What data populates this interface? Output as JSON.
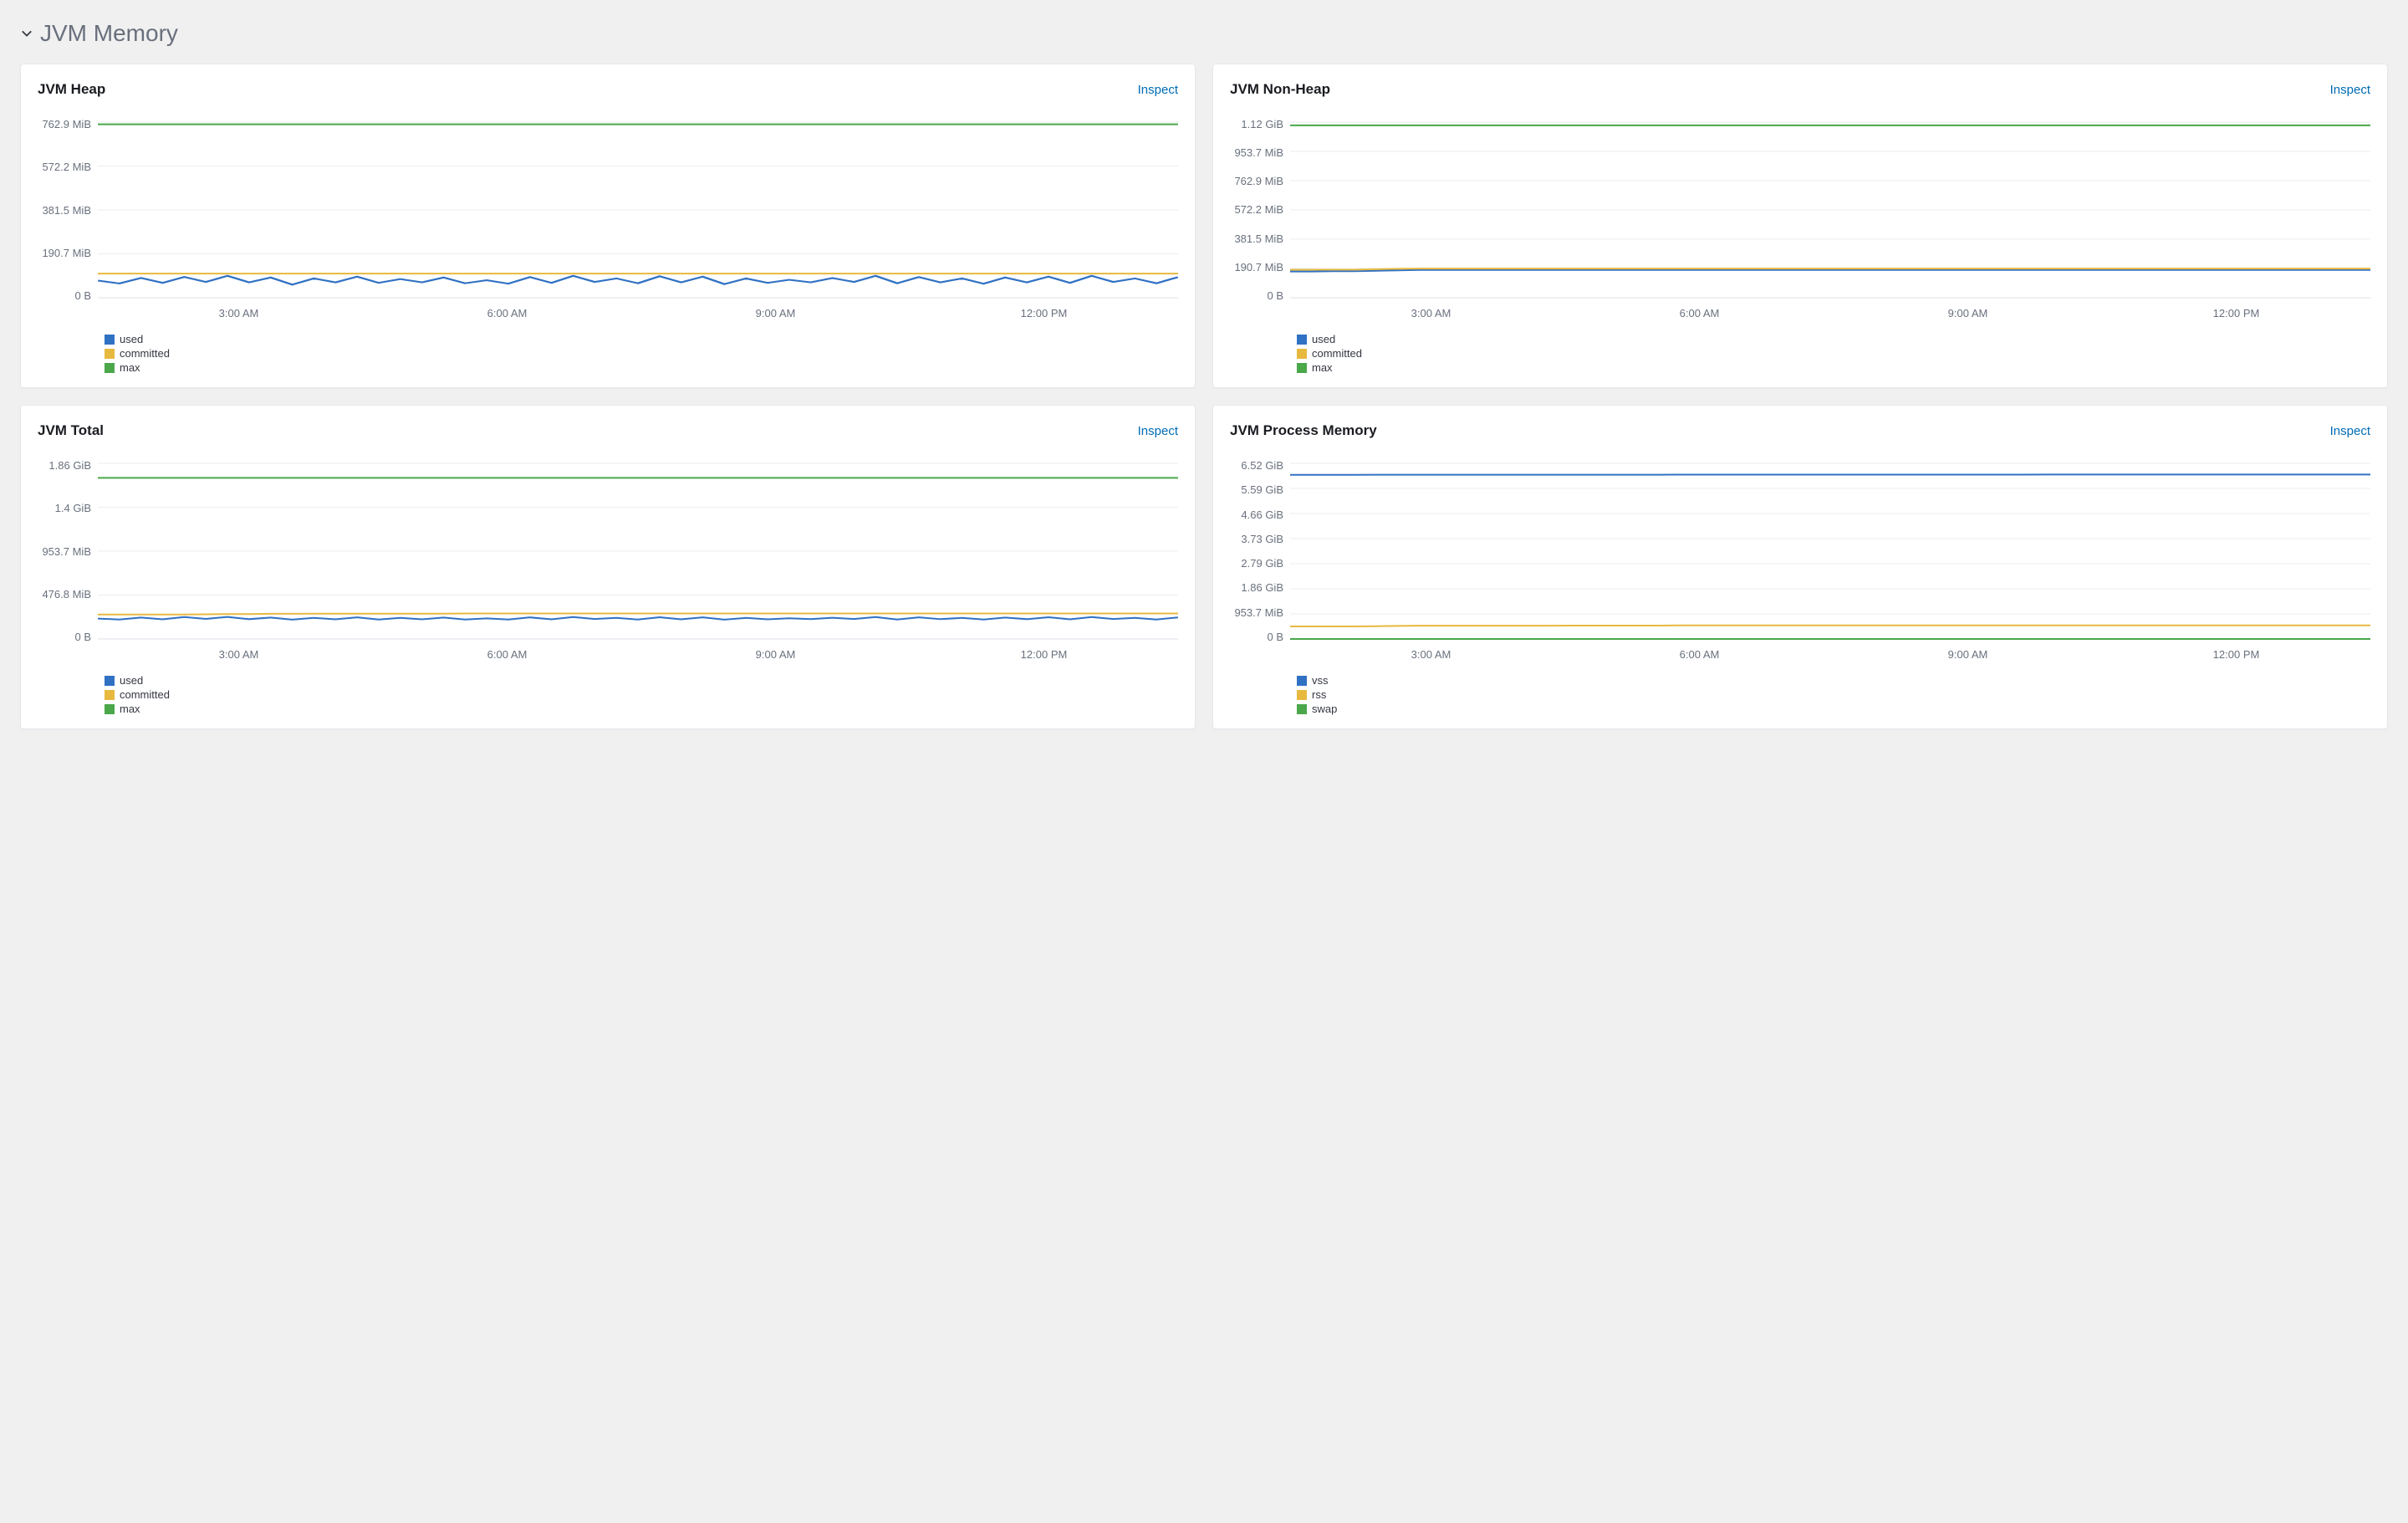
{
  "section": {
    "title": "JVM Memory",
    "expanded": true
  },
  "colors": {
    "background": "#f0f0f0",
    "panel_bg": "#ffffff",
    "panel_border": "#e6e8ec",
    "grid": "#eceef2",
    "axis_text": "#69707d",
    "link": "#006bb4",
    "title_text": "#1a1c21",
    "series": {
      "used": "#3071c4",
      "committed": "#e8b93f",
      "max": "#4aa74a",
      "vss": "#3071c4",
      "rss": "#e8b93f",
      "swap": "#4aa74a"
    }
  },
  "typography": {
    "section_title_fontsize": 28,
    "panel_title_fontsize": 17,
    "axis_fontsize": 13,
    "legend_fontsize": 13
  },
  "x_axis": [
    "3:00 AM",
    "6:00 AM",
    "9:00 AM",
    "12:00 PM"
  ],
  "panels": [
    {
      "id": "jvm-heap",
      "title": "JVM Heap",
      "inspect_label": "Inspect",
      "type": "line",
      "y_ticks": [
        "762.9 MiB",
        "572.2 MiB",
        "381.5 MiB",
        "190.7 MiB",
        "0 B"
      ],
      "y_max": 800000000,
      "series": [
        {
          "name": "used",
          "color_key": "used",
          "values": [
            78,
            65,
            90,
            68,
            95,
            72,
            100,
            70,
            92,
            60,
            88,
            70,
            96,
            68,
            85,
            70,
            92,
            66,
            80,
            64,
            94,
            68,
            100,
            72,
            88,
            66,
            98,
            70,
            96,
            62,
            88,
            68,
            82,
            70,
            90,
            72,
            100,
            66,
            94,
            70,
            88,
            64,
            92,
            70,
            96,
            68,
            100,
            72,
            88,
            66,
            94
          ],
          "scale_to": 1000000
        },
        {
          "name": "committed",
          "color_key": "committed",
          "values": [
            110,
            110,
            110,
            110,
            110,
            110,
            110,
            110,
            110,
            110,
            110,
            110,
            110,
            110,
            110,
            110,
            110,
            110,
            110,
            110,
            110,
            110,
            110,
            110,
            110,
            110,
            110,
            110,
            110,
            110,
            110,
            110,
            110,
            110,
            110,
            110,
            110,
            110,
            110,
            110,
            110,
            110,
            110,
            110,
            110,
            110,
            110,
            110,
            110,
            110,
            110
          ],
          "scale_to": 1000000
        },
        {
          "name": "max",
          "color_key": "max",
          "values": [
            790,
            790,
            790,
            790,
            790,
            790,
            790,
            790,
            790,
            790,
            790,
            790,
            790,
            790,
            790,
            790,
            790,
            790,
            790,
            790,
            790,
            790,
            790,
            790,
            790,
            790,
            790,
            790,
            790,
            790,
            790,
            790,
            790,
            790,
            790,
            790,
            790,
            790,
            790,
            790,
            790,
            790,
            790,
            790,
            790,
            790,
            790,
            790,
            790,
            790,
            790
          ],
          "scale_to": 1000000
        }
      ],
      "legend": [
        "used",
        "committed",
        "max"
      ]
    },
    {
      "id": "jvm-nonheap",
      "title": "JVM Non-Heap",
      "inspect_label": "Inspect",
      "type": "line",
      "y_ticks": [
        "1.12 GiB",
        "953.7 MiB",
        "762.9 MiB",
        "572.2 MiB",
        "381.5 MiB",
        "190.7 MiB",
        "0 B"
      ],
      "y_max": 1202590842,
      "series": [
        {
          "name": "used",
          "color_key": "used",
          "values": [
            180,
            180,
            182,
            182,
            185,
            188,
            190,
            190,
            190,
            190,
            190,
            190,
            190,
            190,
            190,
            190,
            190,
            190,
            190,
            190,
            190,
            190,
            190,
            190,
            190,
            190,
            190,
            190,
            190,
            190,
            190,
            190,
            190,
            190,
            190,
            190,
            190,
            190,
            190,
            190,
            190,
            190,
            190,
            190,
            190,
            190,
            190,
            190,
            190,
            190,
            190
          ],
          "scale_to": 1000000
        },
        {
          "name": "committed",
          "color_key": "committed",
          "values": [
            192,
            192,
            192,
            192,
            195,
            198,
            200,
            200,
            200,
            200,
            200,
            200,
            200,
            200,
            200,
            200,
            200,
            200,
            200,
            200,
            200,
            200,
            200,
            200,
            200,
            200,
            200,
            200,
            200,
            200,
            200,
            200,
            200,
            200,
            200,
            200,
            200,
            200,
            200,
            200,
            200,
            200,
            200,
            200,
            200,
            200,
            200,
            200,
            200,
            200,
            200
          ],
          "scale_to": 1000000
        },
        {
          "name": "max",
          "color_key": "max",
          "values": [
            1180,
            1180,
            1180,
            1180,
            1180,
            1180,
            1180,
            1180,
            1180,
            1180,
            1180,
            1180,
            1180,
            1180,
            1180,
            1180,
            1180,
            1180,
            1180,
            1180,
            1180,
            1180,
            1180,
            1180,
            1180,
            1180,
            1180,
            1180,
            1180,
            1180,
            1180,
            1180,
            1180,
            1180,
            1180,
            1180,
            1180,
            1180,
            1180,
            1180,
            1180,
            1180,
            1180,
            1180,
            1180,
            1180,
            1180,
            1180,
            1180,
            1180,
            1180
          ],
          "scale_to": 1000000
        }
      ],
      "legend": [
        "used",
        "committed",
        "max"
      ]
    },
    {
      "id": "jvm-total",
      "title": "JVM Total",
      "inspect_label": "Inspect",
      "type": "line",
      "y_ticks": [
        "1.86 GiB",
        "1.4 GiB",
        "953.7 MiB",
        "476.8 MiB",
        "0 B"
      ],
      "y_max": 2147483648,
      "series": [
        {
          "name": "used",
          "color_key": "used",
          "values": [
            250,
            238,
            262,
            240,
            268,
            245,
            270,
            242,
            262,
            236,
            258,
            240,
            265,
            238,
            258,
            240,
            262,
            238,
            252,
            238,
            264,
            240,
            268,
            244,
            258,
            238,
            266,
            240,
            264,
            236,
            258,
            240,
            254,
            242,
            260,
            244,
            268,
            238,
            264,
            242,
            258,
            238,
            262,
            242,
            266,
            240,
            268,
            244,
            258,
            238,
            264
          ],
          "scale_to": 1000000
        },
        {
          "name": "committed",
          "color_key": "committed",
          "values": [
            300,
            300,
            300,
            300,
            300,
            302,
            305,
            305,
            308,
            308,
            310,
            310,
            310,
            310,
            310,
            310,
            310,
            312,
            312,
            312,
            312,
            312,
            312,
            312,
            312,
            312,
            312,
            312,
            312,
            312,
            312,
            312,
            312,
            312,
            312,
            312,
            312,
            312,
            312,
            312,
            312,
            312,
            312,
            312,
            312,
            312,
            312,
            312,
            312,
            312,
            312
          ],
          "scale_to": 1000000
        },
        {
          "name": "max",
          "color_key": "max",
          "values": [
            1970,
            1970,
            1970,
            1970,
            1970,
            1970,
            1970,
            1970,
            1970,
            1970,
            1970,
            1970,
            1970,
            1970,
            1970,
            1970,
            1970,
            1970,
            1970,
            1970,
            1970,
            1970,
            1970,
            1970,
            1970,
            1970,
            1970,
            1970,
            1970,
            1970,
            1970,
            1970,
            1970,
            1970,
            1970,
            1970,
            1970,
            1970,
            1970,
            1970,
            1970,
            1970,
            1970,
            1970,
            1970,
            1970,
            1970,
            1970,
            1970,
            1970,
            1970
          ],
          "scale_to": 1000000
        }
      ],
      "legend": [
        "used",
        "committed",
        "max"
      ]
    },
    {
      "id": "jvm-process",
      "title": "JVM Process Memory",
      "inspect_label": "Inspect",
      "type": "line",
      "y_ticks": [
        "6.52 GiB",
        "5.59 GiB",
        "4.66 GiB",
        "3.73 GiB",
        "2.79 GiB",
        "1.86 GiB",
        "953.7 MiB",
        "0 B"
      ],
      "y_max": 7000000000,
      "series": [
        {
          "name": "vss",
          "color_key": "vss",
          "values": [
            6540,
            6540,
            6540,
            6540,
            6545,
            6545,
            6548,
            6548,
            6548,
            6548,
            6548,
            6548,
            6548,
            6548,
            6548,
            6548,
            6548,
            6548,
            6550,
            6550,
            6550,
            6550,
            6550,
            6550,
            6550,
            6550,
            6550,
            6550,
            6550,
            6550,
            6550,
            6550,
            6550,
            6550,
            6550,
            6552,
            6552,
            6552,
            6552,
            6552,
            6552,
            6552,
            6552,
            6552,
            6552,
            6552,
            6552,
            6552,
            6552,
            6552,
            6552
          ],
          "scale_to": 1000000
        },
        {
          "name": "rss",
          "color_key": "rss",
          "values": [
            500,
            500,
            500,
            500,
            510,
            520,
            530,
            530,
            530,
            530,
            530,
            530,
            530,
            535,
            535,
            535,
            535,
            535,
            540,
            540,
            540,
            540,
            540,
            540,
            540,
            540,
            540,
            540,
            540,
            540,
            540,
            540,
            540,
            540,
            540,
            545,
            545,
            545,
            545,
            545,
            545,
            545,
            545,
            545,
            545,
            545,
            545,
            545,
            545,
            545,
            545
          ],
          "scale_to": 1000000
        },
        {
          "name": "swap",
          "color_key": "swap",
          "values": [
            0,
            0,
            0,
            0,
            0,
            0,
            0,
            0,
            0,
            0,
            0,
            0,
            0,
            0,
            0,
            0,
            0,
            0,
            0,
            0,
            0,
            0,
            0,
            0,
            0,
            0,
            0,
            0,
            0,
            0,
            0,
            0,
            0,
            0,
            0,
            0,
            0,
            0,
            0,
            0,
            0,
            0,
            0,
            0,
            0,
            0,
            0,
            0,
            0,
            0,
            0
          ],
          "scale_to": 1000000
        }
      ],
      "legend": [
        "vss",
        "rss",
        "swap"
      ]
    }
  ]
}
